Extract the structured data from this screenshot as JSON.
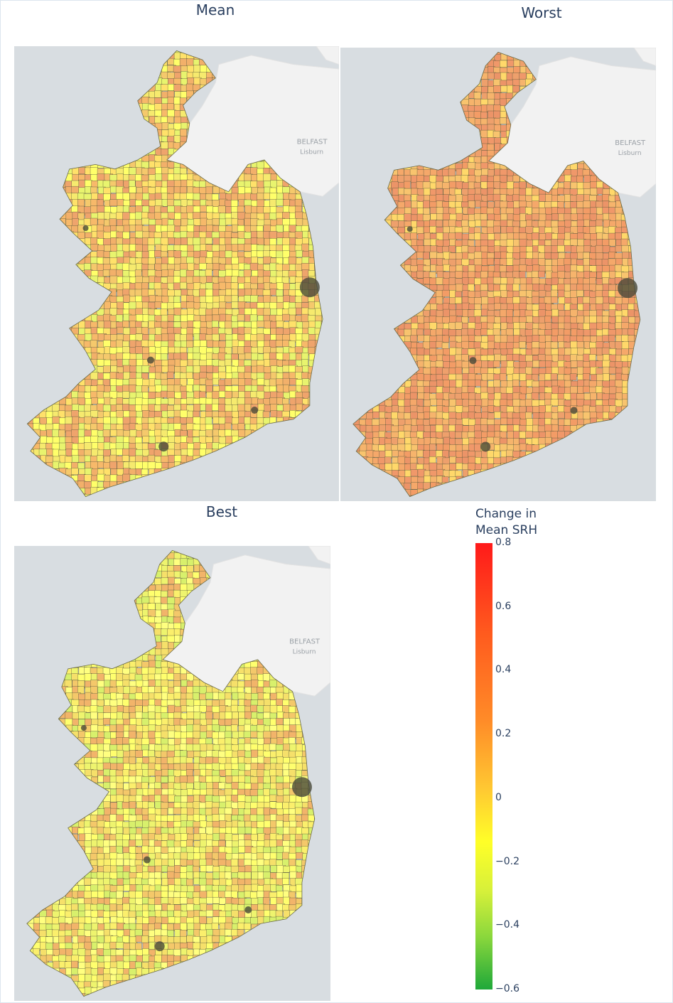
{
  "panels": [
    {
      "id": "mean",
      "title": "Mean",
      "tone": "mixed"
    },
    {
      "id": "worst",
      "title": "Worst",
      "tone": "warm"
    },
    {
      "id": "best",
      "title": "Best",
      "tone": "cool"
    }
  ],
  "basemap": {
    "city_label": "BELFAST",
    "town_label": "Lisburn",
    "sea_color": "#d8dde1",
    "land_color": "#f2f2f2"
  },
  "colorbar": {
    "title_line1": "Change in",
    "title_line2": "Mean SRH",
    "ticks": [
      "0.8",
      "0.6",
      "0.4",
      "0.2",
      "0",
      "−0.2",
      "−0.4",
      "−0.6"
    ],
    "tick_values": [
      0.8,
      0.6,
      0.4,
      0.2,
      0,
      -0.2,
      -0.4,
      -0.6
    ],
    "range": [
      -0.6,
      0.8
    ],
    "colors": [
      "#1fa83a",
      "#8cd83c",
      "#ffff28",
      "#ffc832",
      "#ff8c28",
      "#ff1a1a"
    ]
  }
}
